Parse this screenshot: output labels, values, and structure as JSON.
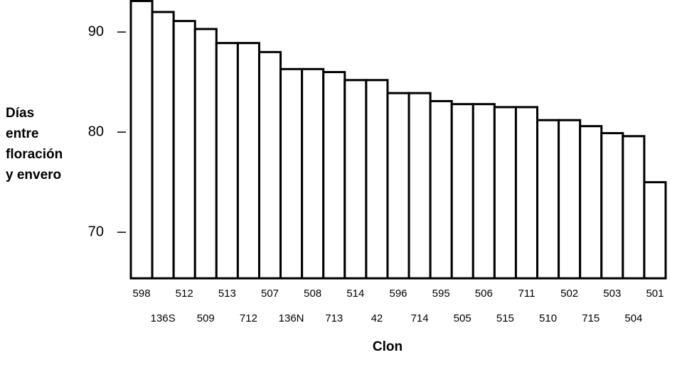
{
  "chart_data": {
    "type": "bar",
    "ylabel": [
      "Días",
      "entre",
      "floración",
      "y envero"
    ],
    "xlabel": "Clon",
    "categories": [
      "598",
      "136S",
      "512",
      "509",
      "513",
      "712",
      "507",
      "136N",
      "508",
      "713",
      "514",
      "42",
      "596",
      "714",
      "595",
      "505",
      "506",
      "515",
      "711",
      "510",
      "502",
      "715",
      "503",
      "504",
      "501"
    ],
    "values": [
      93.1,
      92.0,
      91.1,
      90.3,
      88.9,
      88.9,
      88.0,
      86.3,
      86.3,
      86.0,
      85.2,
      85.2,
      83.9,
      83.9,
      83.1,
      82.8,
      82.8,
      82.5,
      82.5,
      81.2,
      81.2,
      80.6,
      79.9,
      79.6,
      75.0
    ],
    "color": "#ffffff",
    "ylim": [
      65.4,
      93.2
    ],
    "yticks": [
      70,
      80,
      90
    ],
    "grid": false
  }
}
